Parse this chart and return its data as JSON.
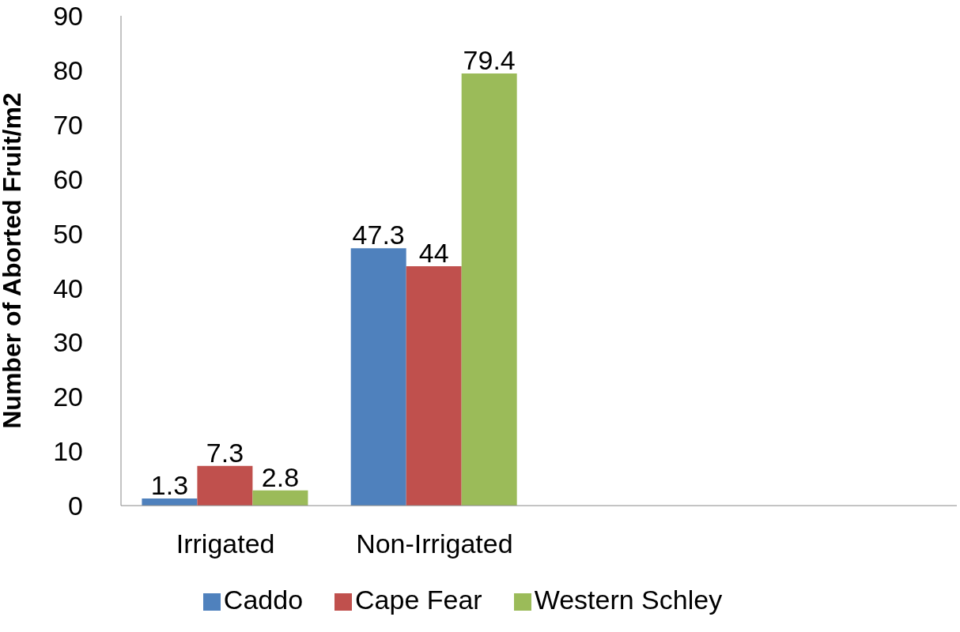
{
  "chart_data": {
    "type": "bar",
    "ylabel": "Number of Aborted Fruit/m2",
    "categories": [
      "Irrigated",
      "Non-Irrigated",
      null,
      null
    ],
    "series": [
      {
        "name": "Caddo",
        "color": "#4f81bd",
        "values": [
          1.3,
          47.3,
          null,
          null
        ]
      },
      {
        "name": "Cape Fear",
        "color": "#c0504d",
        "values": [
          7.3,
          44,
          null,
          null
        ]
      },
      {
        "name": "Western Schley",
        "color": "#9bbb59",
        "values": [
          2.8,
          79.4,
          null,
          null
        ]
      }
    ],
    "ylim": [
      0,
      90
    ],
    "yticks": [
      0,
      10,
      20,
      30,
      40,
      50,
      60,
      70,
      80,
      90
    ],
    "grid": false,
    "legend": "bottom",
    "data_labels": true
  }
}
